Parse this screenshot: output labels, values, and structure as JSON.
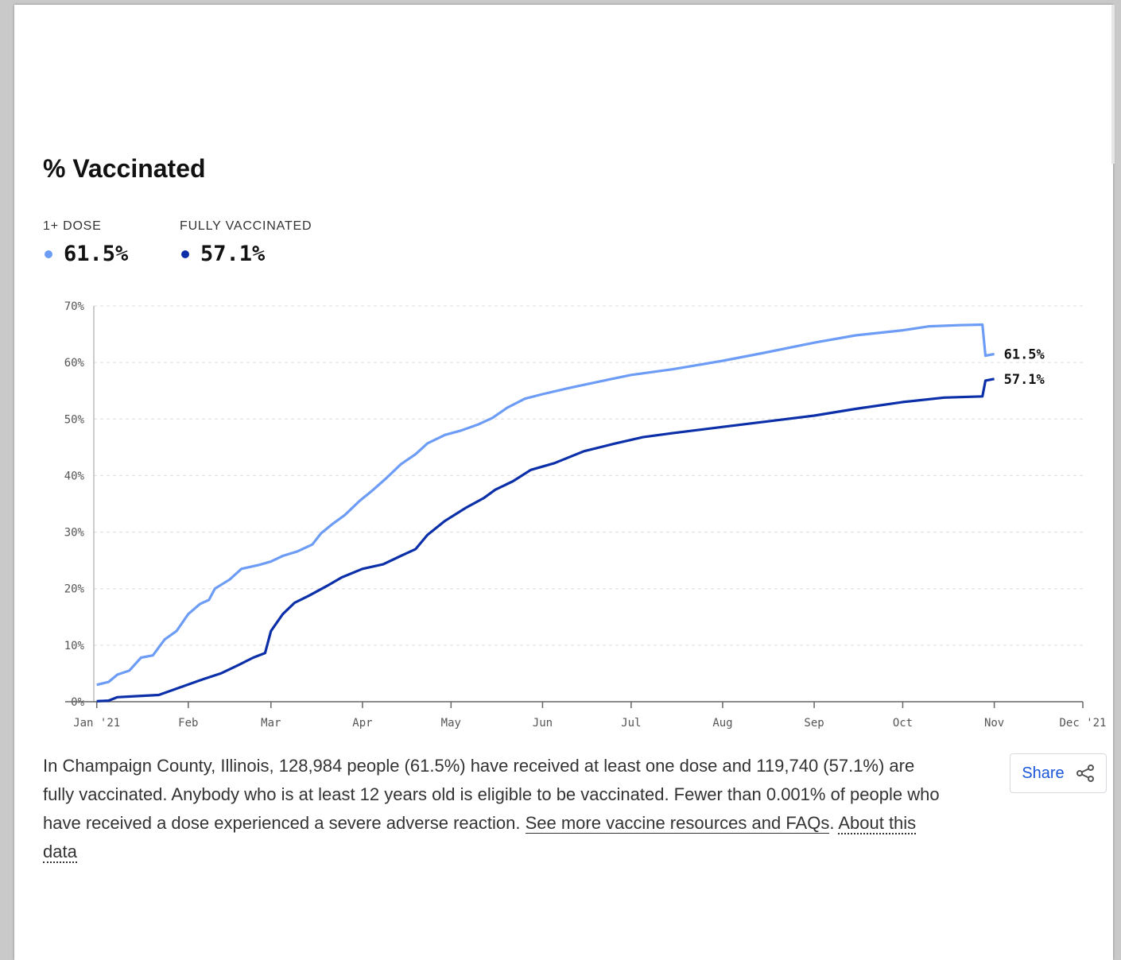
{
  "chart_title": "% Vaccinated",
  "legend": [
    {
      "label": "1+ DOSE",
      "value": "61.5%",
      "color": "#6c9cf5"
    },
    {
      "label": "FULLY VACCINATED",
      "value": "57.1%",
      "color": "#0b2fa8"
    }
  ],
  "chart_data": {
    "type": "line",
    "title": "% Vaccinated",
    "xlabel": "",
    "ylabel": "",
    "x_ticks": [
      "Jan '21",
      "Feb",
      "Mar",
      "Apr",
      "May",
      "Jun",
      "Jul",
      "Aug",
      "Sep",
      "Oct",
      "Nov",
      "Dec '21"
    ],
    "y_ticks": [
      "0%",
      "10%",
      "20%",
      "30%",
      "40%",
      "50%",
      "60%",
      "70%"
    ],
    "ylim": [
      0,
      70
    ],
    "xlim": [
      "2020-12-31",
      "2021-12-01"
    ],
    "grid": true,
    "series": [
      {
        "name": "1+ DOSE",
        "color": "#6c9cf5",
        "end_label": "61.5%",
        "points": [
          [
            "2021-01-01",
            3.0
          ],
          [
            "2021-01-05",
            3.5
          ],
          [
            "2021-01-08",
            4.8
          ],
          [
            "2021-01-12",
            5.5
          ],
          [
            "2021-01-16",
            7.8
          ],
          [
            "2021-01-20",
            8.2
          ],
          [
            "2021-01-24",
            11.0
          ],
          [
            "2021-01-28",
            12.5
          ],
          [
            "2021-02-01",
            15.5
          ],
          [
            "2021-02-05",
            17.3
          ],
          [
            "2021-02-08",
            18.0
          ],
          [
            "2021-02-10",
            20.0
          ],
          [
            "2021-02-15",
            21.6
          ],
          [
            "2021-02-19",
            23.5
          ],
          [
            "2021-02-25",
            24.2
          ],
          [
            "2021-03-01",
            24.8
          ],
          [
            "2021-03-05",
            25.8
          ],
          [
            "2021-03-10",
            26.6
          ],
          [
            "2021-03-15",
            27.8
          ],
          [
            "2021-03-18",
            29.8
          ],
          [
            "2021-03-22",
            31.5
          ],
          [
            "2021-03-26",
            33.0
          ],
          [
            "2021-03-31",
            35.5
          ],
          [
            "2021-04-04",
            37.2
          ],
          [
            "2021-04-09",
            39.5
          ],
          [
            "2021-04-14",
            42.0
          ],
          [
            "2021-04-19",
            43.8
          ],
          [
            "2021-04-23",
            45.7
          ],
          [
            "2021-04-29",
            47.2
          ],
          [
            "2021-05-04",
            47.9
          ],
          [
            "2021-05-10",
            49.0
          ],
          [
            "2021-05-15",
            50.2
          ],
          [
            "2021-05-20",
            52.0
          ],
          [
            "2021-05-26",
            53.6
          ],
          [
            "2021-06-01",
            54.4
          ],
          [
            "2021-06-10",
            55.5
          ],
          [
            "2021-06-20",
            56.6
          ],
          [
            "2021-07-01",
            57.8
          ],
          [
            "2021-07-15",
            58.8
          ],
          [
            "2021-08-01",
            60.3
          ],
          [
            "2021-08-15",
            61.7
          ],
          [
            "2021-09-01",
            63.5
          ],
          [
            "2021-09-15",
            64.8
          ],
          [
            "2021-10-01",
            65.7
          ],
          [
            "2021-10-10",
            66.4
          ],
          [
            "2021-10-20",
            66.6
          ],
          [
            "2021-10-28",
            66.7
          ],
          [
            "2021-10-29",
            61.2
          ],
          [
            "2021-11-01",
            61.5
          ]
        ]
      },
      {
        "name": "FULLY VACCINATED",
        "color": "#0b2fa8",
        "end_label": "57.1%",
        "points": [
          [
            "2021-01-01",
            0.1
          ],
          [
            "2021-01-05",
            0.2
          ],
          [
            "2021-01-08",
            0.8
          ],
          [
            "2021-01-15",
            1.0
          ],
          [
            "2021-01-22",
            1.2
          ],
          [
            "2021-01-29",
            2.5
          ],
          [
            "2021-02-05",
            3.8
          ],
          [
            "2021-02-12",
            5.0
          ],
          [
            "2021-02-18",
            6.5
          ],
          [
            "2021-02-23",
            7.8
          ],
          [
            "2021-02-27",
            8.6
          ],
          [
            "2021-03-01",
            12.5
          ],
          [
            "2021-03-05",
            15.5
          ],
          [
            "2021-03-09",
            17.5
          ],
          [
            "2021-03-14",
            18.8
          ],
          [
            "2021-03-20",
            20.5
          ],
          [
            "2021-03-25",
            22.0
          ],
          [
            "2021-04-01",
            23.5
          ],
          [
            "2021-04-08",
            24.3
          ],
          [
            "2021-04-14",
            25.8
          ],
          [
            "2021-04-19",
            27.0
          ],
          [
            "2021-04-23",
            29.5
          ],
          [
            "2021-04-29",
            32.0
          ],
          [
            "2021-05-06",
            34.3
          ],
          [
            "2021-05-12",
            36.0
          ],
          [
            "2021-05-16",
            37.5
          ],
          [
            "2021-05-22",
            39.0
          ],
          [
            "2021-05-28",
            41.0
          ],
          [
            "2021-06-05",
            42.2
          ],
          [
            "2021-06-15",
            44.3
          ],
          [
            "2021-06-25",
            45.6
          ],
          [
            "2021-07-05",
            46.8
          ],
          [
            "2021-07-15",
            47.5
          ],
          [
            "2021-08-01",
            48.6
          ],
          [
            "2021-08-15",
            49.5
          ],
          [
            "2021-09-01",
            50.6
          ],
          [
            "2021-09-15",
            51.8
          ],
          [
            "2021-10-01",
            53.0
          ],
          [
            "2021-10-15",
            53.8
          ],
          [
            "2021-10-28",
            54.0
          ],
          [
            "2021-10-29",
            56.8
          ],
          [
            "2021-11-01",
            57.1
          ]
        ]
      }
    ]
  },
  "description": {
    "text": "In Champaign County, Illinois, 128,984 people (61.5%) have received at least one dose and 119,740 (57.1%) are fully vaccinated. Anybody who is at least 12 years old is eligible to be vaccinated. Fewer than 0.001% of people who have received a dose experienced a severe adverse reaction. ",
    "resources_link": "See more vaccine resources and FAQs",
    "separator": ". ",
    "about_link": "About this data"
  },
  "share": {
    "label": "Share",
    "icon": "share-icon"
  },
  "colors": {
    "grid": "#dcdcdc",
    "axis": "#666666"
  }
}
